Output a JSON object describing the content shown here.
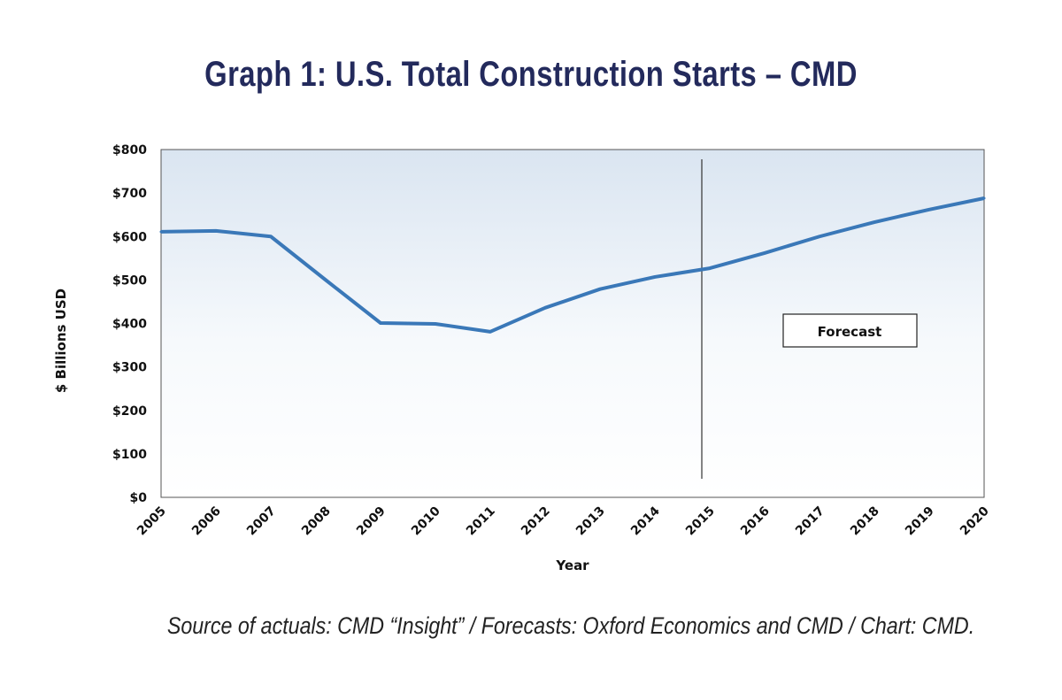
{
  "chart_data": {
    "type": "line",
    "title": "Graph 1: U.S. Total Construction Starts – CMD",
    "xlabel": "Year",
    "ylabel": "$ Billions USD",
    "x": [
      "2005",
      "2006",
      "2007",
      "2008",
      "2009",
      "2010",
      "2011",
      "2012",
      "2013",
      "2014",
      "2015",
      "2016",
      "2017",
      "2018",
      "2019",
      "2020"
    ],
    "series": [
      {
        "values": [
          611,
          613,
          600,
          500,
          401,
          399,
          381,
          436,
          479,
          507,
          527,
          562,
          600,
          633,
          662,
          688
        ],
        "color": "#3a78b8"
      }
    ],
    "ylim": [
      0,
      800
    ],
    "yticks": [
      0,
      100,
      200,
      300,
      400,
      500,
      600,
      700,
      800
    ],
    "ytick_labels": [
      "$0",
      "$100",
      "$200",
      "$300",
      "$400",
      "$500",
      "$600",
      "$700",
      "$800"
    ],
    "grid": false,
    "forecast_start": "2015",
    "annotation": "Forecast",
    "background_gradient": [
      "#dae5f1",
      "#ffffff"
    ]
  },
  "source": "Source of actuals: CMD “Insight” / Forecasts: Oxford Economics and CMD / Chart: CMD."
}
